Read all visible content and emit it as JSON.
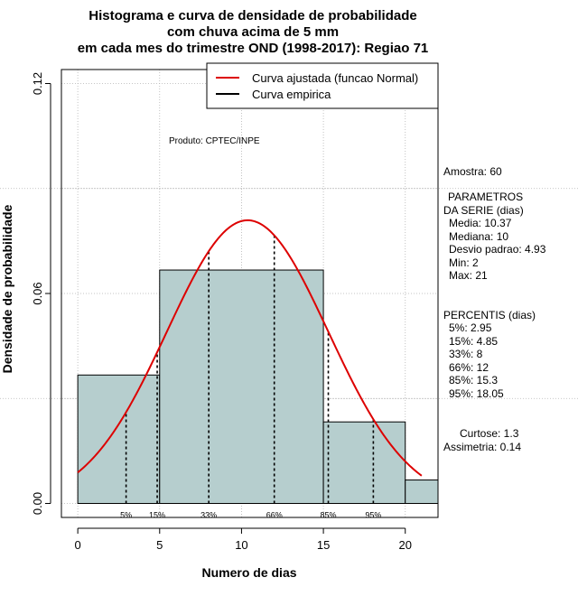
{
  "chart_data": {
    "type": "histogram",
    "title_lines": [
      "Histograma e curva de densidade de probabilidade",
      "com chuva acima de 5 mm",
      "em cada mes do trimestre OND (1998-2017): Regiao 71"
    ],
    "xlabel": "Numero de dias",
    "ylabel": "Densidade de probabilidade",
    "xlim": [
      -1,
      22
    ],
    "ylim": [
      -0.004,
      0.124
    ],
    "xticks": [
      0,
      5,
      10,
      15,
      20
    ],
    "yticks": [
      0.0,
      0.06,
      0.12
    ],
    "ytick_labels": [
      "0.00",
      "0.06",
      "0.12"
    ],
    "bins": [
      {
        "from": 0,
        "to": 5,
        "density": 0.0367
      },
      {
        "from": 5,
        "to": 15,
        "density": 0.0667
      },
      {
        "from": 15,
        "to": 20,
        "density": 0.0233
      },
      {
        "from": 20,
        "to": 22,
        "density": 0.0067
      }
    ],
    "normal_fit": {
      "mean": 10.37,
      "sd": 4.93,
      "x_from": 0,
      "x_to": 21
    },
    "percentile_lines": [
      {
        "label": "5%",
        "x": 2.95
      },
      {
        "label": "15%",
        "x": 4.85
      },
      {
        "label": "33%",
        "x": 8
      },
      {
        "label": "66%",
        "x": 12
      },
      {
        "label": "85%",
        "x": 15.3
      },
      {
        "label": "95%",
        "x": 18.05
      }
    ],
    "hgrid": [
      0.0,
      0.03,
      0.06,
      0.09,
      0.12
    ],
    "vgrid": [
      0,
      5,
      10,
      15,
      20
    ],
    "legend": [
      {
        "label": "Curva ajustada (funcao Normal)",
        "color": "#dd0000"
      },
      {
        "label": "Curva empirica",
        "color": "#000000"
      }
    ],
    "annotation": "Produto: CPTEC/INPE",
    "colors": {
      "bar_fill": "#b6cece",
      "curve": "#dd0000",
      "grid": "#b4b4b4"
    }
  },
  "stats": {
    "amostra": "Amostra: 60",
    "parametros_title_1": "PARAMETROS",
    "parametros_title_2": "DA SERIE (dias)",
    "media": "Media: 10.37",
    "mediana": "Mediana: 10",
    "desvio": "Desvio padrao: 4.93",
    "min": "Min: 2",
    "max": "Max: 21",
    "percentis_title": "PERCENTIS (dias)",
    "p5": "5%: 2.95",
    "p15": "15%: 4.85",
    "p33": "33%: 8",
    "p66": "66%: 12",
    "p85": "85%: 15.3",
    "p95": "95%: 18.05",
    "curtose": "Curtose: 1.3",
    "assimetria": "Assimetria: 0.14"
  }
}
